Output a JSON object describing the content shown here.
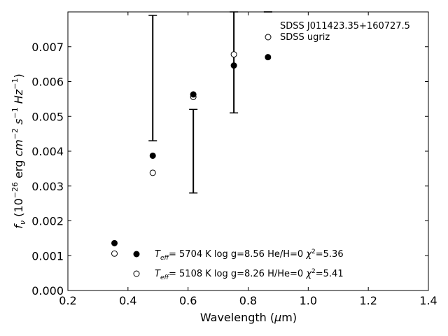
{
  "chart_data": {
    "type": "scatter",
    "xlabel": "Wavelength (μm)",
    "ylabel": "f_ν (10^-26 erg cm^-2 s^-1 Hz^-1)",
    "xlim": [
      0.2,
      1.4
    ],
    "ylim": [
      0.0,
      0.008
    ],
    "x_ticks": [
      "0.2",
      "0.4",
      "0.6",
      "0.8",
      "1.0",
      "1.2",
      "1.4"
    ],
    "x_tick_values": [
      0.2,
      0.4,
      0.6,
      0.8,
      1.0,
      1.2,
      1.4
    ],
    "y_ticks": [
      "0.000",
      "0.001",
      "0.002",
      "0.003",
      "0.004",
      "0.005",
      "0.006",
      "0.007"
    ],
    "y_tick_values": [
      0.0,
      0.001,
      0.002,
      0.003,
      0.004,
      0.005,
      0.006,
      0.007
    ],
    "grid": false,
    "series": [
      {
        "name": "SDSS J011423.35+160727.5",
        "marker": "errorbar",
        "x": [
          0.4825,
          0.6175,
          0.7525,
          0.866
        ],
        "y": [
          0.0061,
          0.004,
          0.008,
          0.008
        ],
        "yerr_low": [
          0.0043,
          0.0028,
          0.0051,
          null
        ],
        "yerr_high": [
          0.0079,
          0.0052,
          0.008,
          0.008
        ]
      },
      {
        "name": "SDSS ugriz",
        "marker": "open-circle",
        "x": [
          0.355,
          0.4825,
          0.6175,
          0.7525
        ],
        "y": [
          0.00106,
          0.00338,
          0.00556,
          0.00678
        ]
      },
      {
        "name": "T_eff= 5704 K log g=8.56 He/H=0 χ²=5.36",
        "marker": "filled-circle",
        "x": [
          0.355,
          0.4825,
          0.6175,
          0.7525,
          0.866
        ],
        "y": [
          0.00136,
          0.00387,
          0.00563,
          0.00646,
          0.0067
        ]
      },
      {
        "name": "T_eff= 5108 K log g=8.26 H/He=0 χ²=5.41",
        "marker": "open-circle"
      }
    ],
    "legend_top": {
      "placement": "top-right",
      "star_name": "SDSS J011423.35+160727.5",
      "ugriz": "SDSS ugriz"
    },
    "legend_bottom": {
      "placement": "bottom-right",
      "fit1": {
        "teff_sub": "eff",
        "teff_rest": "=  5704 K  log g=8.56  He/H=0",
        "chi_value": "=5.36"
      },
      "fit2": {
        "teff_sub": "eff",
        "teff_rest": "=  5108 K  log g=8.26  H/He=0",
        "chi_value": "=5.41"
      }
    }
  }
}
